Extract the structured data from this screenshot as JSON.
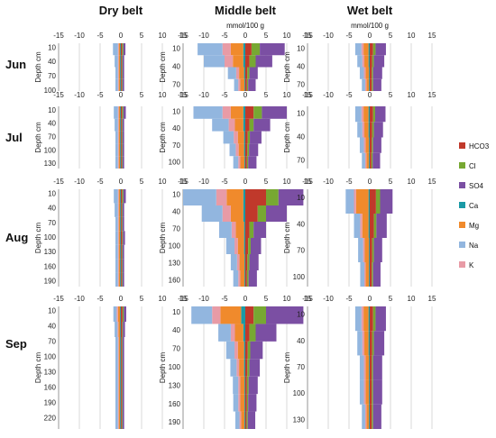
{
  "colors": {
    "HCO3": "#c0392b",
    "Cl": "#77a832",
    "SO4": "#7b4fa3",
    "Ca": "#1a9aa6",
    "Mg": "#f08a2c",
    "Na": "#92b6df",
    "K": "#e89ba6",
    "grid": "#c8c8c8",
    "axis": "#888888"
  },
  "belts": [
    "Dry belt",
    "Middle belt",
    "Wet belt"
  ],
  "months": [
    "Jun",
    "Jul",
    "Aug",
    "Sep"
  ],
  "unit_label": "mmol/100 g",
  "depth_label": "Depth cm",
  "x_tick_labels": [
    "-15",
    "-10",
    "-5",
    "0",
    "5",
    "10",
    "15"
  ],
  "legend": [
    "HCO3",
    "Cl",
    "SO4",
    "Ca",
    "Mg",
    "Na",
    "K"
  ],
  "chart_data": {
    "type": "bar",
    "orientation": "horizontal-population-pyramid",
    "xlim": [
      -15,
      15
    ],
    "x_ticks": [
      -15,
      -10,
      -5,
      0,
      5,
      10,
      15
    ],
    "x_unit": "mmol/100 g",
    "y_axis": "Depth cm",
    "cations_negative": [
      "K",
      "Na",
      "Mg",
      "Ca"
    ],
    "anions_positive": [
      "HCO3",
      "Cl",
      "SO4"
    ],
    "panels": [
      {
        "month": "Jun",
        "belt": "Dry belt",
        "depth_ticks": [
          "10",
          "40",
          "70",
          "100"
        ],
        "profile": {
          "depth_max": 100,
          "cat": [
            [
              1.2,
              0.2,
              0.3,
              0.2
            ],
            [
              0.8,
              0.2,
              0.3,
              0.2
            ],
            [
              0.6,
              0.2,
              0.3,
              0.2
            ],
            [
              0.6,
              0.2,
              0.3,
              0.2
            ]
          ],
          "an": [
            [
              0.3,
              0.3,
              0.5
            ],
            [
              0.2,
              0.2,
              0.4
            ],
            [
              0.2,
              0.2,
              0.4
            ],
            [
              0.2,
              0.2,
              0.4
            ]
          ]
        }
      },
      {
        "month": "Jun",
        "belt": "Middle belt",
        "depth_ticks": [
          "10",
          "40",
          "70"
        ],
        "profile": {
          "depth_max": 80,
          "cat": [
            [
              6,
              2,
              3,
              0.5
            ],
            [
              5,
              2,
              2.5,
              0.5
            ],
            [
              2,
              0.7,
              1.2,
              0.3
            ],
            [
              1,
              0.5,
              1,
              0.2
            ]
          ],
          "an": [
            [
              1.5,
              2,
              6
            ],
            [
              1,
              1.5,
              4
            ],
            [
              0.5,
              0.5,
              2
            ],
            [
              0.4,
              0.3,
              1.8
            ]
          ]
        }
      },
      {
        "month": "Jun",
        "belt": "Wet belt",
        "depth_ticks": [
          "10",
          "40",
          "70"
        ],
        "profile": {
          "depth_max": 80,
          "cat": [
            [
              1.5,
              0.5,
              1.2,
              0.3
            ],
            [
              1.2,
              0.5,
              1,
              0.3
            ],
            [
              1,
              0.4,
              0.8,
              0.2
            ],
            [
              0.8,
              0.3,
              0.6,
              0.2
            ]
          ],
          "an": [
            [
              0.8,
              0.6,
              2.5
            ],
            [
              0.6,
              0.4,
              2.5
            ],
            [
              0.5,
              0.3,
              2.2
            ],
            [
              0.5,
              0.3,
              2
            ]
          ]
        }
      },
      {
        "month": "Jul",
        "belt": "Dry belt",
        "depth_ticks": [
          "10",
          "40",
          "70",
          "100",
          "130"
        ],
        "profile": {
          "depth_max": 140,
          "cat": [
            [
              1,
              0.2,
              0.3,
              0.2
            ],
            [
              0.8,
              0.2,
              0.3,
              0.2
            ],
            [
              0.6,
              0.2,
              0.3,
              0.2
            ],
            [
              0.6,
              0.2,
              0.3,
              0.2
            ],
            [
              0.6,
              0.2,
              0.3,
              0.2
            ]
          ],
          "an": [
            [
              0.3,
              0.3,
              0.6
            ],
            [
              0.2,
              0.2,
              0.4
            ],
            [
              0.2,
              0.2,
              0.4
            ],
            [
              0.2,
              0.2,
              0.4
            ],
            [
              0.2,
              0.2,
              0.4
            ]
          ]
        }
      },
      {
        "month": "Jul",
        "belt": "Middle belt",
        "depth_ticks": [
          "10",
          "40",
          "70",
          "100"
        ],
        "profile": {
          "depth_max": 110,
          "cat": [
            [
              7,
              2,
              3,
              0.5
            ],
            [
              4,
              1.5,
              2,
              0.5
            ],
            [
              2.5,
              1,
              1.5,
              0.3
            ],
            [
              1.5,
              0.7,
              1.3,
              0.3
            ],
            [
              1.2,
              0.5,
              1,
              0.2
            ]
          ],
          "an": [
            [
              2,
              2,
              6
            ],
            [
              1,
              1,
              4
            ],
            [
              0.6,
              0.5,
              2.8
            ],
            [
              0.5,
              0.4,
              2.2
            ],
            [
              0.4,
              0.3,
              2
            ]
          ]
        }
      },
      {
        "month": "Jul",
        "belt": "Wet belt",
        "depth_ticks": [
          "10",
          "40",
          "70"
        ],
        "profile": {
          "depth_max": 80,
          "cat": [
            [
              1.5,
              0.5,
              1.2,
              0.3
            ],
            [
              1.2,
              0.5,
              1,
              0.3
            ],
            [
              1,
              0.4,
              0.8,
              0.2
            ],
            [
              0.8,
              0.3,
              0.6,
              0.2
            ]
          ],
          "an": [
            [
              0.8,
              0.5,
              2.5
            ],
            [
              0.6,
              0.4,
              2.2
            ],
            [
              0.5,
              0.3,
              2
            ],
            [
              0.4,
              0.3,
              1.8
            ]
          ]
        }
      },
      {
        "month": "Aug",
        "belt": "Dry belt",
        "depth_ticks": [
          "10",
          "40",
          "70",
          "100",
          "130",
          "160",
          "190"
        ],
        "profile": {
          "depth_max": 200,
          "cat": [
            [
              1,
              0.2,
              0.3,
              0.2
            ],
            [
              0.8,
              0.2,
              0.3,
              0.2
            ],
            [
              0.6,
              0.2,
              0.3,
              0.2
            ],
            [
              0.6,
              0.2,
              0.3,
              0.2
            ],
            [
              0.6,
              0.2,
              0.3,
              0.2
            ],
            [
              0.6,
              0.2,
              0.3,
              0.2
            ],
            [
              0.6,
              0.2,
              0.3,
              0.2
            ]
          ],
          "an": [
            [
              0.3,
              0.3,
              0.6
            ],
            [
              0.2,
              0.2,
              0.4
            ],
            [
              0.2,
              0.2,
              0.4
            ],
            [
              0.3,
              0.2,
              0.5
            ],
            [
              0.2,
              0.2,
              0.4
            ],
            [
              0.2,
              0.2,
              0.4
            ],
            [
              0.2,
              0.2,
              0.4
            ]
          ]
        }
      },
      {
        "month": "Aug",
        "belt": "Middle belt",
        "depth_ticks": [
          "10",
          "40",
          "70",
          "100",
          "130",
          "160"
        ],
        "profile": {
          "depth_max": 170,
          "cat": [
            [
              8,
              2.5,
              4,
              0.5
            ],
            [
              5,
              2,
              3,
              0.5
            ],
            [
              3,
              1,
              2,
              0.3
            ],
            [
              2,
              0.8,
              1.5,
              0.3
            ],
            [
              1.5,
              0.6,
              1.2,
              0.2
            ],
            [
              1.2,
              0.5,
              1,
              0.2
            ]
          ],
          "an": [
            [
              5,
              3,
              6
            ],
            [
              3,
              2,
              5
            ],
            [
              1,
              1,
              3
            ],
            [
              0.7,
              0.6,
              2.5
            ],
            [
              0.5,
              0.5,
              2.2
            ],
            [
              0.4,
              0.4,
              2
            ]
          ]
        }
      },
      {
        "month": "Aug",
        "belt": "Wet belt",
        "depth_ticks": [
          "10",
          "40",
          "70",
          "100"
        ],
        "profile": {
          "depth_max": 110,
          "cat": [
            [
              2,
              0.5,
              3,
              0.3
            ],
            [
              1.5,
              0.5,
              1.5,
              0.3
            ],
            [
              1.2,
              0.4,
              1,
              0.2
            ],
            [
              1,
              0.3,
              0.8,
              0.2
            ]
          ],
          "an": [
            [
              1.5,
              1,
              3
            ],
            [
              1,
              0.6,
              2.5
            ],
            [
              0.6,
              0.4,
              2
            ],
            [
              0.5,
              0.3,
              1.8
            ]
          ]
        }
      },
      {
        "month": "Sep",
        "belt": "Dry belt",
        "depth_ticks": [
          "10",
          "40",
          "70",
          "100",
          "130",
          "160",
          "190",
          "220"
        ],
        "profile": {
          "depth_max": 240,
          "cat": [
            [
              0.8,
              0.3,
              0.5,
              0.2
            ],
            [
              0.7,
              0.2,
              0.4,
              0.2
            ],
            [
              0.6,
              0.2,
              0.3,
              0.2
            ],
            [
              0.6,
              0.2,
              0.3,
              0.2
            ],
            [
              0.6,
              0.2,
              0.3,
              0.2
            ],
            [
              0.6,
              0.2,
              0.3,
              0.2
            ],
            [
              0.6,
              0.2,
              0.3,
              0.2
            ],
            [
              0.6,
              0.2,
              0.3,
              0.2
            ]
          ],
          "an": [
            [
              0.4,
              0.3,
              0.6
            ],
            [
              0.3,
              0.2,
              0.5
            ],
            [
              0.2,
              0.2,
              0.4
            ],
            [
              0.2,
              0.2,
              0.4
            ],
            [
              0.2,
              0.2,
              0.4
            ],
            [
              0.2,
              0.2,
              0.4
            ],
            [
              0.2,
              0.2,
              0.4
            ],
            [
              0.2,
              0.2,
              0.4
            ]
          ]
        }
      },
      {
        "month": "Sep",
        "belt": "Middle belt",
        "depth_ticks": [
          "10",
          "40",
          "70",
          "100",
          "130",
          "160",
          "190"
        ],
        "profile": {
          "depth_max": 200,
          "cat": [
            [
              5,
              2,
              5,
              1
            ],
            [
              3,
              1,
              2,
              0.5
            ],
            [
              2,
              0.8,
              1.5,
              0.3
            ],
            [
              1.5,
              0.6,
              1.2,
              0.3
            ],
            [
              1.3,
              0.5,
              1,
              0.2
            ],
            [
              1.2,
              0.5,
              1,
              0.2
            ],
            [
              1,
              0.4,
              0.8,
              0.2
            ]
          ],
          "an": [
            [
              2,
              3,
              9
            ],
            [
              1,
              1.5,
              5
            ],
            [
              0.6,
              0.6,
              3
            ],
            [
              0.5,
              0.5,
              2.5
            ],
            [
              0.4,
              0.4,
              2.2
            ],
            [
              0.4,
              0.3,
              2
            ],
            [
              0.3,
              0.3,
              1.8
            ]
          ]
        }
      },
      {
        "month": "Sep",
        "belt": "Wet belt",
        "depth_ticks": [
          "10",
          "40",
          "70",
          "100",
          "130"
        ],
        "profile": {
          "depth_max": 140,
          "cat": [
            [
              1.5,
              0.5,
              1.2,
              0.3
            ],
            [
              1.2,
              0.5,
              1,
              0.3
            ],
            [
              1,
              0.4,
              0.8,
              0.2
            ],
            [
              1,
              0.4,
              0.8,
              0.2
            ],
            [
              0.8,
              0.3,
              0.6,
              0.2
            ]
          ],
          "an": [
            [
              0.8,
              0.6,
              2.5
            ],
            [
              0.6,
              0.4,
              2.5
            ],
            [
              0.5,
              0.3,
              2.2
            ],
            [
              0.5,
              0.3,
              2.2
            ],
            [
              0.5,
              0.3,
              2
            ]
          ]
        }
      }
    ]
  }
}
